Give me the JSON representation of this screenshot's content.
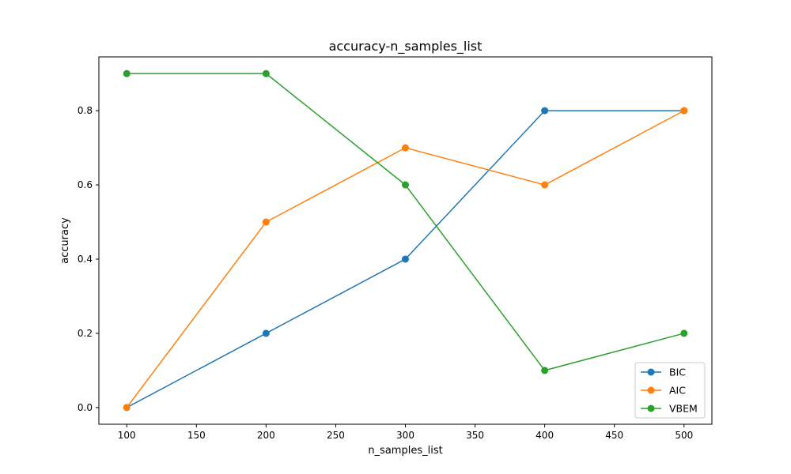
{
  "chart_data": {
    "type": "line",
    "title": "accuracy-n_samples_list",
    "xlabel": "n_samples_list",
    "ylabel": "accuracy",
    "x": [
      100,
      200,
      300,
      400,
      500
    ],
    "xlim": [
      80,
      520
    ],
    "ylim": [
      -0.045,
      0.945
    ],
    "xticks": [
      100,
      150,
      200,
      250,
      300,
      350,
      400,
      450,
      500
    ],
    "yticks": [
      0.0,
      0.2,
      0.4,
      0.6,
      0.8
    ],
    "ytick_labels": [
      "0.0",
      "0.2",
      "0.4",
      "0.6",
      "0.8"
    ],
    "grid": false,
    "legend_position": "lower right",
    "series": [
      {
        "name": "BIC",
        "color": "#1f77b4",
        "values": [
          0.0,
          0.2,
          0.4,
          0.8,
          0.8
        ]
      },
      {
        "name": "AIC",
        "color": "#ff7f0e",
        "values": [
          0.0,
          0.5,
          0.7,
          0.6,
          0.8
        ]
      },
      {
        "name": "VBEM",
        "color": "#2ca02c",
        "values": [
          0.9,
          0.9,
          0.6,
          0.1,
          0.2
        ]
      }
    ]
  }
}
